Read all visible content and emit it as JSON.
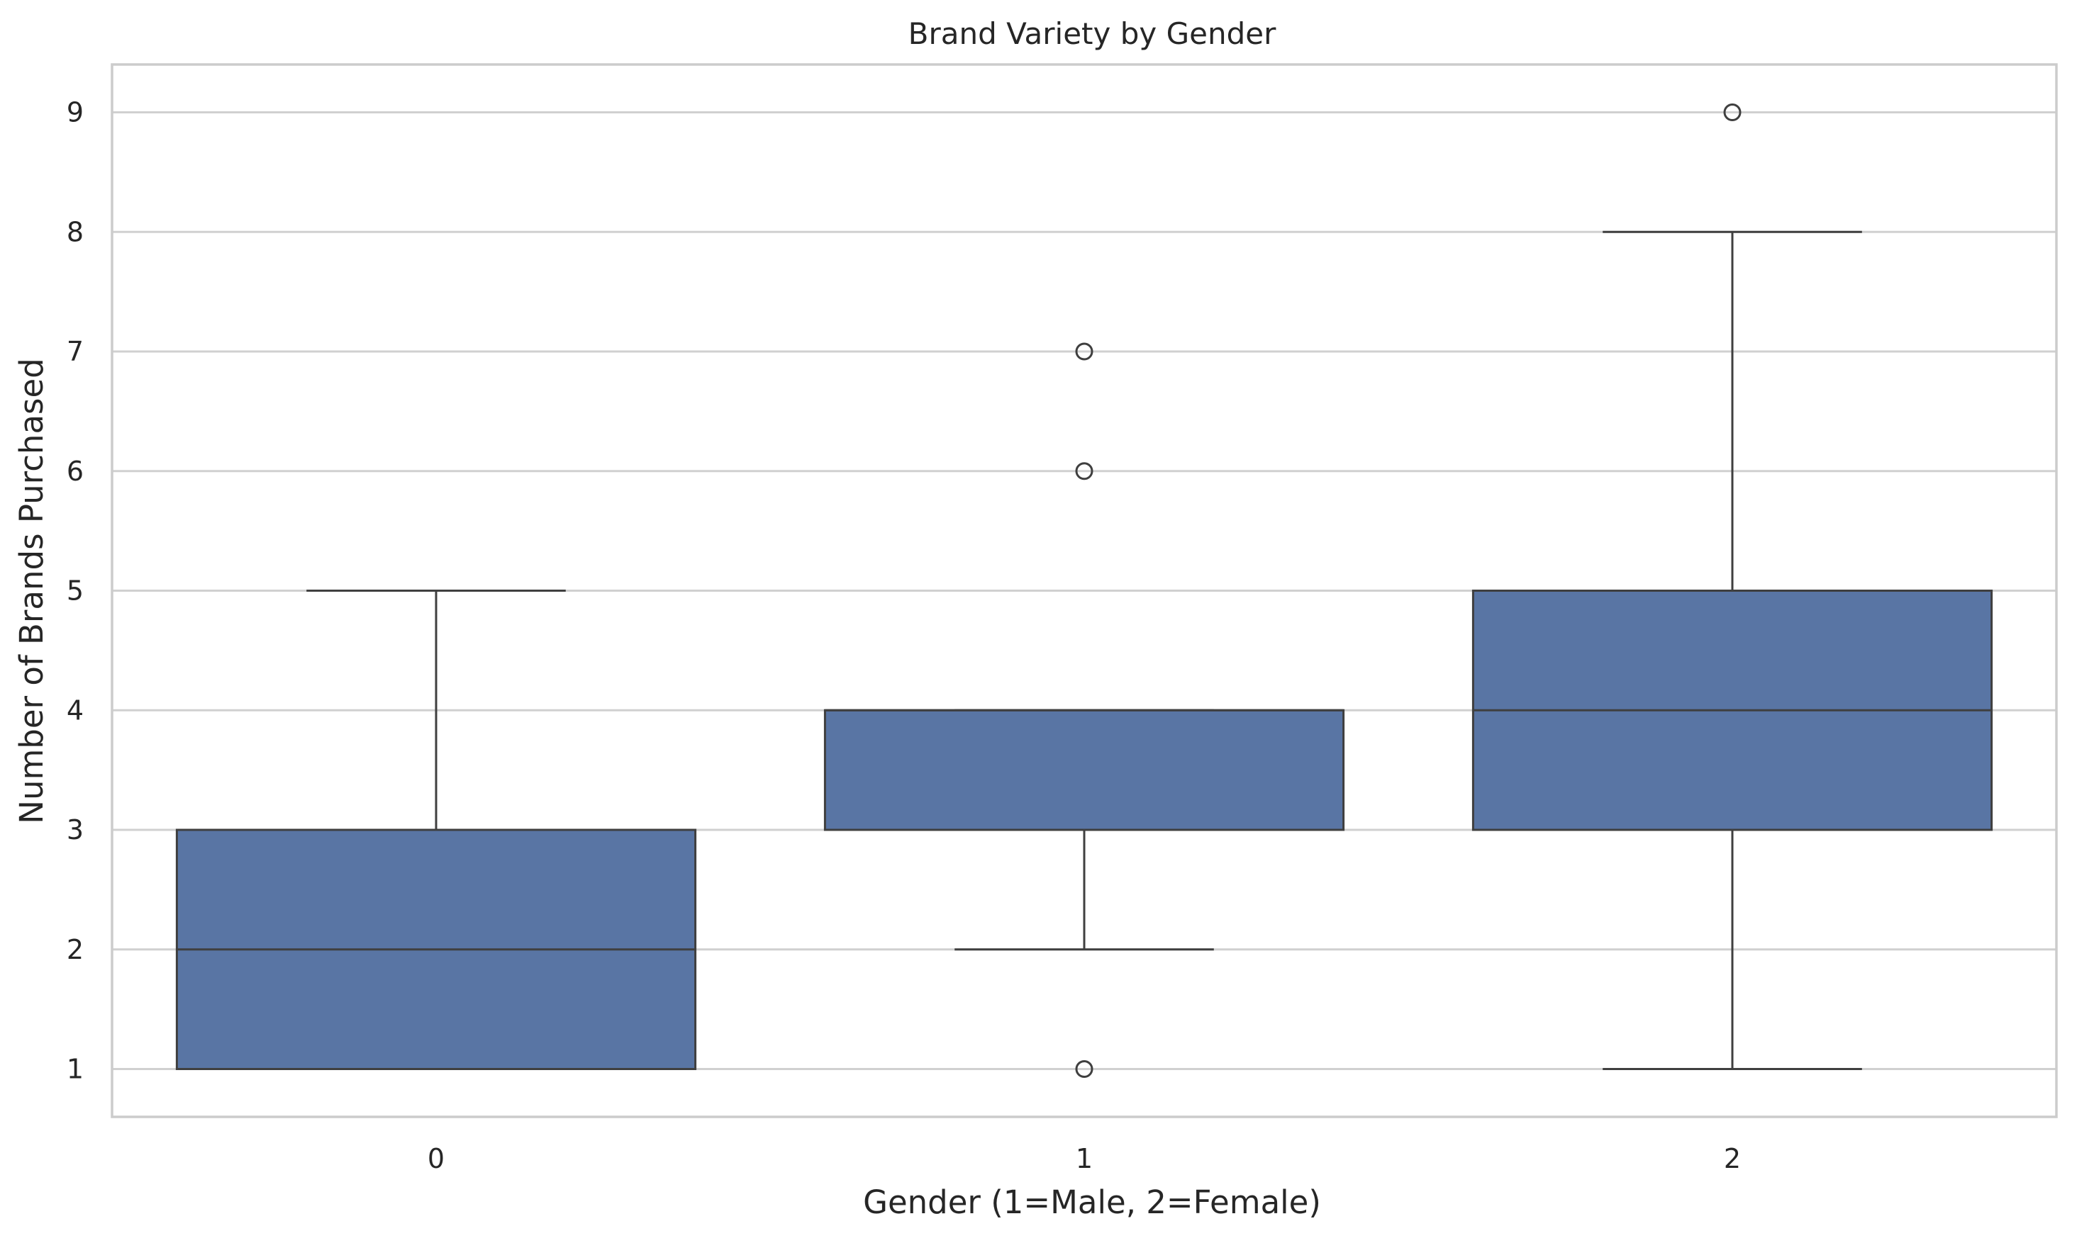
{
  "chart_data": {
    "type": "box",
    "title": "Brand Variety by Gender",
    "xlabel": "Gender (1=Male, 2=Female)",
    "ylabel": "Number of Brands Purchased",
    "categories": [
      "0",
      "1",
      "2"
    ],
    "yticks": [
      1,
      2,
      3,
      4,
      5,
      6,
      7,
      8,
      9
    ],
    "ylim": [
      0.6,
      9.4
    ],
    "grid": "horizontal",
    "box_color": "#5975a4",
    "line_color": "#3f3f3f",
    "boxes": [
      {
        "category": "0",
        "whisker_low": 1,
        "q1": 1,
        "median": 2,
        "q3": 3,
        "whisker_high": 5,
        "outliers": []
      },
      {
        "category": "1",
        "whisker_low": 2,
        "q1": 3,
        "median": 4,
        "q3": 4,
        "whisker_high": 4,
        "outliers": [
          1,
          6,
          7
        ]
      },
      {
        "category": "2",
        "whisker_low": 1,
        "q1": 3,
        "median": 4,
        "q3": 5,
        "whisker_high": 8,
        "outliers": [
          9
        ]
      }
    ]
  }
}
